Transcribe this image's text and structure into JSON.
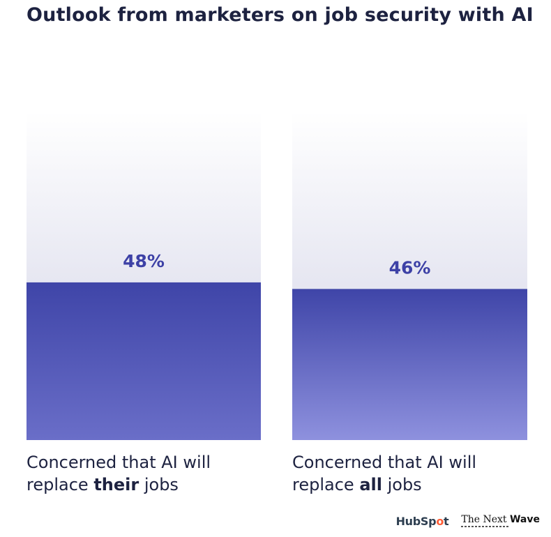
{
  "title": "Outlook from marketers on job security with AI",
  "chart_data": {
    "type": "bar",
    "categories": [
      "Concerned that AI will replace their jobs",
      "Concerned that AI will replace all jobs"
    ],
    "values": [
      48,
      46
    ],
    "value_labels": [
      "48%",
      "46%"
    ],
    "ylim": [
      0,
      100
    ],
    "title": "Outlook from marketers on job security with AI",
    "xlabel": "",
    "ylabel": "",
    "grid": false,
    "legend": "none"
  },
  "captions": [
    {
      "pre": "Concerned that AI will replace ",
      "emph": "their",
      "post": " jobs"
    },
    {
      "pre": "Concerned that AI will replace ",
      "emph": "all",
      "post": " jobs"
    }
  ],
  "logos": {
    "hubspot": {
      "before": "HubSp",
      "o": "o",
      "after": "t"
    },
    "nextwave": {
      "main": "The Next ",
      "bold": "Wave"
    }
  },
  "colors": {
    "bar_top": "#3f45a8",
    "bar_bottom": "#8c8fdc",
    "bar_bottom_alt": "#6b6fc9",
    "track_top": "#ffffff",
    "track_bottom": "#d2d3e6",
    "label": "#3d41a6"
  }
}
